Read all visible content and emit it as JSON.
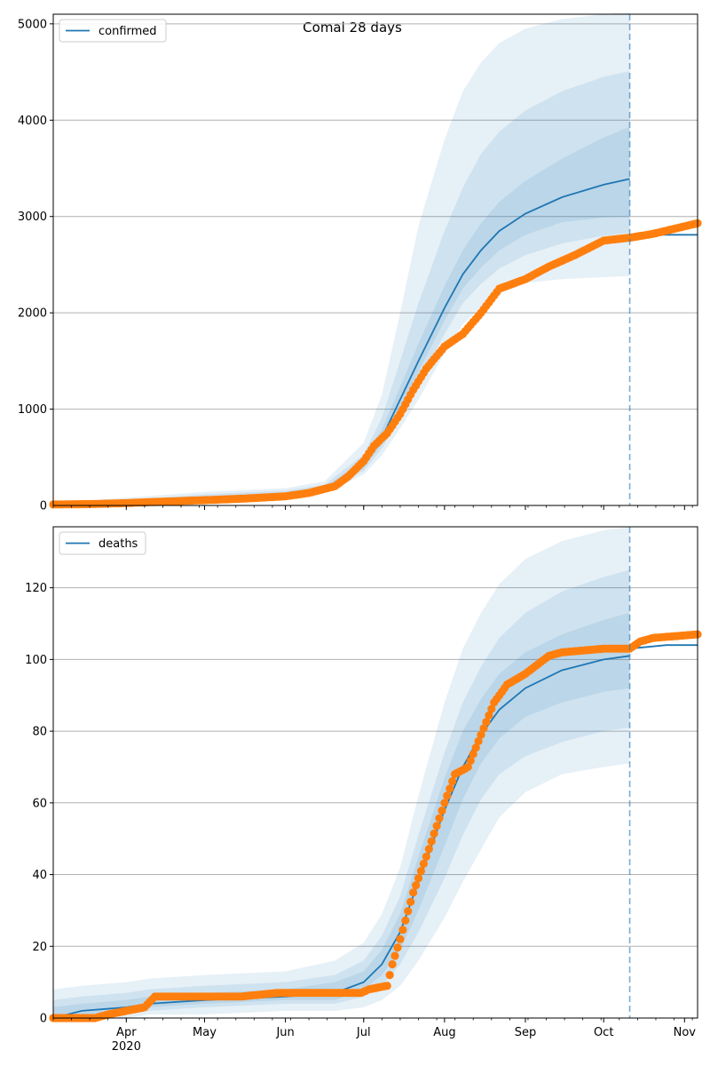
{
  "figure": {
    "title": "Comal 28 days"
  },
  "colors": {
    "model_line": "#1f77b4",
    "band": "#1f77b4",
    "observed": "#ff7f0e",
    "grid": "#b0b0b0",
    "forecast_line": "#1f77b4"
  },
  "chart_data": [
    {
      "type": "line",
      "legend": "confirmed",
      "legend_position": "top-left",
      "grid": "horizontal",
      "xlim": [
        "2020-03-04",
        "2020-11-06"
      ],
      "ylim": [
        0,
        5100
      ],
      "y_ticks": [
        0,
        1000,
        2000,
        3000,
        4000,
        5000
      ],
      "x_tick_labels": [
        "Apr",
        "May",
        "Jun",
        "Jul",
        "Aug",
        "Sep",
        "Oct",
        "Nov"
      ],
      "x_tick_sublabel": "2020",
      "forecast_start": "2020-10-11",
      "model": {
        "name": "confirmed",
        "x": [
          "2020-03-04",
          "2020-04-01",
          "2020-05-01",
          "2020-06-01",
          "2020-06-16",
          "2020-07-01",
          "2020-07-08",
          "2020-07-15",
          "2020-07-22",
          "2020-08-01",
          "2020-08-08",
          "2020-08-15",
          "2020-08-22",
          "2020-09-01",
          "2020-09-15",
          "2020-10-01",
          "2020-10-11"
        ],
        "y": [
          10,
          30,
          80,
          120,
          170,
          420,
          700,
          1100,
          1500,
          2050,
          2400,
          2650,
          2850,
          3030,
          3200,
          3330,
          3390
        ]
      },
      "model_after": {
        "x": [
          "2020-10-11",
          "2020-11-06"
        ],
        "y": [
          2810,
          2810
        ]
      },
      "bands": [
        {
          "level": "outer",
          "lower": [
            0,
            10,
            50,
            95,
            130,
            320,
            520,
            800,
            1100,
            1580,
            1880,
            2060,
            2200,
            2310,
            2350,
            2370,
            2380
          ],
          "upper": [
            30,
            80,
            140,
            180,
            250,
            650,
            1150,
            2000,
            2900,
            3800,
            4300,
            4600,
            4800,
            4950,
            5050,
            5100,
            5120
          ]
        },
        {
          "level": "middle",
          "lower": [
            4,
            18,
            60,
            105,
            145,
            360,
            590,
            930,
            1280,
            1780,
            2100,
            2300,
            2460,
            2600,
            2720,
            2800,
            2830
          ],
          "upper": [
            20,
            55,
            115,
            155,
            215,
            530,
            910,
            1500,
            2100,
            2850,
            3300,
            3650,
            3880,
            4100,
            4300,
            4450,
            4510
          ]
        },
        {
          "level": "inner",
          "lower": [
            7,
            24,
            70,
            112,
            158,
            390,
            640,
            1010,
            1390,
            1920,
            2250,
            2470,
            2650,
            2810,
            2940,
            2990,
            3000
          ],
          "upper": [
            14,
            40,
            95,
            135,
            190,
            470,
            790,
            1230,
            1680,
            2280,
            2650,
            2930,
            3150,
            3370,
            3600,
            3820,
            3930
          ]
        }
      ],
      "observed": {
        "name": "observed",
        "x": [
          "2020-03-04",
          "2020-03-20",
          "2020-04-01",
          "2020-04-15",
          "2020-05-01",
          "2020-05-15",
          "2020-06-01",
          "2020-06-10",
          "2020-06-20",
          "2020-06-25",
          "2020-07-01",
          "2020-07-05",
          "2020-07-10",
          "2020-07-15",
          "2020-07-20",
          "2020-07-25",
          "2020-08-01",
          "2020-08-08",
          "2020-08-15",
          "2020-08-22",
          "2020-09-01",
          "2020-09-10",
          "2020-09-20",
          "2020-10-01",
          "2020-10-11",
          "2020-10-20",
          "2020-11-06"
        ],
        "y": [
          10,
          15,
          25,
          40,
          55,
          70,
          95,
          130,
          200,
          300,
          460,
          620,
          750,
          950,
          1200,
          1420,
          1650,
          1780,
          2000,
          2250,
          2350,
          2480,
          2600,
          2750,
          2780,
          2820,
          2930
        ]
      }
    },
    {
      "type": "line",
      "legend": "deaths",
      "legend_position": "top-left",
      "grid": "horizontal",
      "xlim": [
        "2020-03-04",
        "2020-11-06"
      ],
      "ylim": [
        0,
        137
      ],
      "y_ticks": [
        0,
        20,
        40,
        60,
        80,
        100,
        120
      ],
      "x_tick_labels": [
        "Apr",
        "May",
        "Jun",
        "Jul",
        "Aug",
        "Sep",
        "Oct",
        "Nov"
      ],
      "x_tick_sublabel": "2020",
      "forecast_start": "2020-10-11",
      "model": {
        "name": "deaths",
        "x": [
          "2020-03-04",
          "2020-03-15",
          "2020-04-01",
          "2020-04-10",
          "2020-05-01",
          "2020-06-01",
          "2020-06-20",
          "2020-07-01",
          "2020-07-08",
          "2020-07-15",
          "2020-07-22",
          "2020-08-01",
          "2020-08-08",
          "2020-08-15",
          "2020-08-22",
          "2020-09-01",
          "2020-09-15",
          "2020-10-01",
          "2020-10-11"
        ],
        "y": [
          0,
          2,
          3,
          4,
          5,
          6,
          7,
          10,
          15,
          24,
          38,
          58,
          70,
          79,
          86,
          92,
          97,
          100,
          101
        ]
      },
      "model_after": {
        "x": [
          "2020-10-11",
          "2020-10-25",
          "2020-11-06"
        ],
        "y": [
          103,
          104,
          104
        ]
      },
      "bands": [
        {
          "level": "outer",
          "lower": [
            0,
            0,
            0,
            1,
            1,
            2,
            2,
            3,
            5,
            9,
            16,
            28,
            38,
            47,
            56,
            63,
            68,
            70,
            71
          ],
          "upper": [
            8,
            9,
            10,
            11,
            12,
            13,
            16,
            21,
            29,
            42,
            62,
            88,
            103,
            113,
            121,
            128,
            133,
            136,
            137
          ]
        },
        {
          "level": "middle",
          "lower": [
            0,
            1,
            1,
            2,
            3,
            4,
            4,
            6,
            9,
            15,
            24,
            39,
            51,
            61,
            68,
            73,
            77,
            80,
            81
          ],
          "upper": [
            5,
            6,
            7,
            8,
            9,
            10,
            12,
            16,
            23,
            34,
            51,
            74,
            88,
            98,
            106,
            113,
            119,
            123,
            125
          ]
        },
        {
          "level": "inner",
          "lower": [
            0,
            1,
            2,
            3,
            4,
            5,
            5,
            8,
            12,
            19,
            30,
            48,
            61,
            71,
            78,
            84,
            88,
            91,
            92
          ],
          "upper": [
            3,
            4,
            5,
            6,
            7,
            8,
            10,
            13,
            19,
            29,
            45,
            67,
            80,
            89,
            96,
            102,
            107,
            111,
            113
          ]
        }
      ],
      "observed": {
        "name": "observed",
        "x": [
          "2020-03-04",
          "2020-03-20",
          "2020-03-25",
          "2020-04-01",
          "2020-04-08",
          "2020-04-12",
          "2020-05-15",
          "2020-05-29",
          "2020-06-15",
          "2020-06-30",
          "2020-07-03",
          "2020-07-10",
          "2020-07-12",
          "2020-07-15",
          "2020-07-20",
          "2020-07-25",
          "2020-08-01",
          "2020-08-05",
          "2020-08-10",
          "2020-08-15",
          "2020-08-20",
          "2020-08-25",
          "2020-09-01",
          "2020-09-10",
          "2020-09-15",
          "2020-10-01",
          "2020-10-11",
          "2020-10-15",
          "2020-10-20",
          "2020-11-06"
        ],
        "y": [
          0,
          0,
          1,
          2,
          3,
          6,
          6,
          7,
          7,
          7,
          8,
          9,
          15,
          22,
          35,
          45,
          60,
          68,
          70,
          79,
          88,
          93,
          96,
          101,
          102,
          103,
          103,
          105,
          106,
          107
        ]
      }
    }
  ]
}
